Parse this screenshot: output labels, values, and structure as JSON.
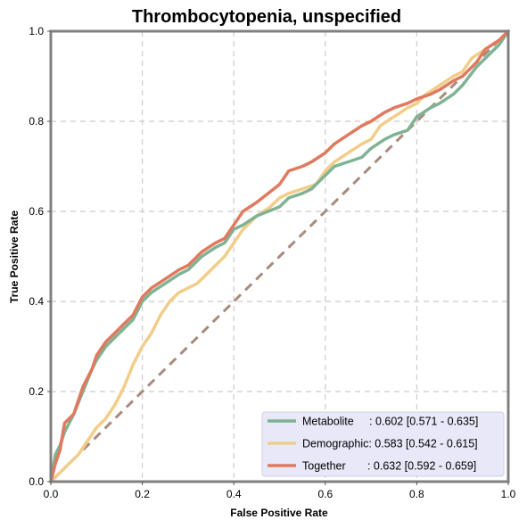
{
  "chart_data": {
    "type": "line",
    "title": "Thrombocytopenia, unspecified",
    "xlabel": "False Positive Rate",
    "ylabel": "True Positive Rate",
    "xlim": [
      0,
      1
    ],
    "ylim": [
      0,
      1
    ],
    "xticks": [
      "0.0",
      "0.2",
      "0.4",
      "0.6",
      "0.8",
      "1.0"
    ],
    "yticks": [
      "0.0",
      "0.2",
      "0.4",
      "0.6",
      "0.8",
      "1.0"
    ],
    "grid": true,
    "legend_position": "lower-right",
    "diagonal_color": "#a88b7c",
    "series": [
      {
        "name": "Metabolite",
        "label": "Metabolite     : 0.602 [0.571 - 0.635]",
        "color": "#7fb394",
        "x": [
          0,
          0.01,
          0.02,
          0.03,
          0.05,
          0.07,
          0.09,
          0.1,
          0.12,
          0.15,
          0.18,
          0.2,
          0.22,
          0.25,
          0.28,
          0.3,
          0.33,
          0.36,
          0.38,
          0.4,
          0.42,
          0.45,
          0.5,
          0.52,
          0.55,
          0.57,
          0.6,
          0.62,
          0.65,
          0.68,
          0.7,
          0.73,
          0.75,
          0.78,
          0.8,
          0.83,
          0.85,
          0.88,
          0.9,
          0.93,
          0.95,
          0.98,
          1.0
        ],
        "y": [
          0,
          0.06,
          0.08,
          0.11,
          0.15,
          0.2,
          0.25,
          0.27,
          0.3,
          0.33,
          0.36,
          0.4,
          0.42,
          0.44,
          0.46,
          0.47,
          0.5,
          0.52,
          0.53,
          0.56,
          0.57,
          0.59,
          0.61,
          0.63,
          0.64,
          0.65,
          0.68,
          0.7,
          0.71,
          0.72,
          0.74,
          0.76,
          0.77,
          0.78,
          0.81,
          0.83,
          0.84,
          0.86,
          0.88,
          0.92,
          0.94,
          0.97,
          1.0
        ]
      },
      {
        "name": "Demographic",
        "label": "Demographic: 0.583 [0.542 - 0.615]",
        "color": "#f2cd8a",
        "x": [
          0,
          0.02,
          0.04,
          0.06,
          0.08,
          0.1,
          0.12,
          0.14,
          0.16,
          0.18,
          0.2,
          0.22,
          0.24,
          0.26,
          0.28,
          0.3,
          0.32,
          0.35,
          0.38,
          0.4,
          0.42,
          0.45,
          0.48,
          0.5,
          0.52,
          0.55,
          0.58,
          0.6,
          0.62,
          0.65,
          0.68,
          0.7,
          0.72,
          0.75,
          0.78,
          0.8,
          0.82,
          0.85,
          0.88,
          0.9,
          0.92,
          0.95,
          0.98,
          1.0
        ],
        "y": [
          0,
          0.02,
          0.04,
          0.06,
          0.09,
          0.12,
          0.14,
          0.17,
          0.21,
          0.26,
          0.3,
          0.33,
          0.37,
          0.4,
          0.42,
          0.43,
          0.44,
          0.47,
          0.5,
          0.53,
          0.56,
          0.59,
          0.61,
          0.63,
          0.64,
          0.65,
          0.66,
          0.69,
          0.71,
          0.73,
          0.75,
          0.76,
          0.79,
          0.81,
          0.83,
          0.84,
          0.86,
          0.88,
          0.9,
          0.91,
          0.94,
          0.96,
          0.98,
          1.0
        ]
      },
      {
        "name": "Together",
        "label": "Together       : 0.632 [0.592 - 0.659]",
        "color": "#e07a5f",
        "x": [
          0,
          0.01,
          0.02,
          0.03,
          0.05,
          0.07,
          0.09,
          0.1,
          0.12,
          0.15,
          0.18,
          0.2,
          0.22,
          0.25,
          0.28,
          0.3,
          0.33,
          0.36,
          0.38,
          0.4,
          0.42,
          0.45,
          0.5,
          0.52,
          0.55,
          0.57,
          0.6,
          0.62,
          0.65,
          0.68,
          0.7,
          0.73,
          0.75,
          0.78,
          0.8,
          0.83,
          0.85,
          0.88,
          0.9,
          0.93,
          0.95,
          0.98,
          1.0
        ],
        "y": [
          0,
          0.04,
          0.07,
          0.13,
          0.15,
          0.21,
          0.25,
          0.28,
          0.31,
          0.34,
          0.37,
          0.41,
          0.43,
          0.45,
          0.47,
          0.48,
          0.51,
          0.53,
          0.54,
          0.57,
          0.6,
          0.62,
          0.66,
          0.69,
          0.7,
          0.71,
          0.73,
          0.75,
          0.77,
          0.79,
          0.8,
          0.82,
          0.83,
          0.84,
          0.85,
          0.86,
          0.87,
          0.89,
          0.9,
          0.93,
          0.96,
          0.98,
          1.0
        ]
      }
    ]
  }
}
